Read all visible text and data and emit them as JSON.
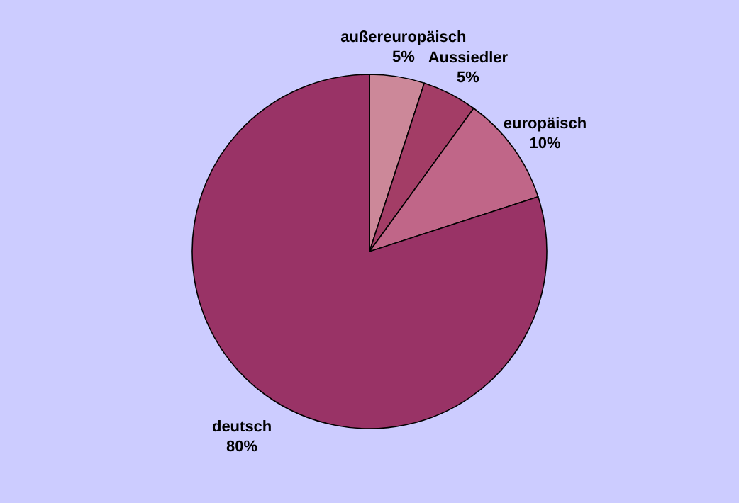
{
  "chart_data": {
    "type": "pie",
    "categories": [
      "außereuropäisch",
      "Aussiedler",
      "europäisch",
      "deutsch"
    ],
    "values": [
      5,
      5,
      10,
      80
    ],
    "colors": [
      "#cc8899",
      "#a33d66",
      "#c06688",
      "#993366"
    ],
    "value_labels": [
      "5%",
      "5%",
      "10%",
      "80%"
    ],
    "legend": false
  }
}
